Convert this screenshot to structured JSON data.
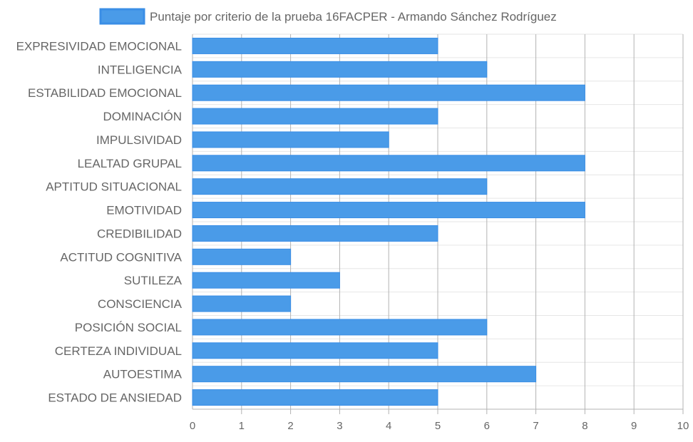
{
  "chart_data": {
    "type": "bar",
    "orientation": "horizontal",
    "series": [
      {
        "name": "Puntaje por criterio de la prueba 16FACPER - Armando Sánchez Rodríguez",
        "values": [
          5,
          6,
          8,
          5,
          4,
          8,
          6,
          8,
          5,
          2,
          3,
          2,
          6,
          5,
          7,
          5
        ]
      }
    ],
    "categories": [
      "EXPRESIVIDAD EMOCIONAL",
      "INTELIGENCIA",
      "ESTABILIDAD EMOCIONAL",
      "DOMINACIÓN",
      "IMPULSIVIDAD",
      "LEALTAD GRUPAL",
      "APTITUD SITUACIONAL",
      "EMOTIVIDAD",
      "CREDIBILIDAD",
      "ACTITUD COGNITIVA",
      "SUTILEZA",
      "CONSCIENCIA",
      "POSICIÓN SOCIAL",
      "CERTEZA INDIVIDUAL",
      "AUTOESTIMA",
      "ESTADO DE ANSIEDAD"
    ],
    "xlim": [
      0,
      10
    ],
    "xticks": [
      "0",
      "1",
      "2",
      "3",
      "4",
      "5",
      "6",
      "7",
      "8",
      "9",
      "10"
    ],
    "grid": true,
    "legend_position": "top",
    "colors": {
      "bar_fill": "#4a9be8",
      "bar_stroke": "#3a8ee6",
      "grid_major": "#b3b3b3",
      "grid_minor": "#e6e6e6",
      "text": "#666666"
    }
  }
}
